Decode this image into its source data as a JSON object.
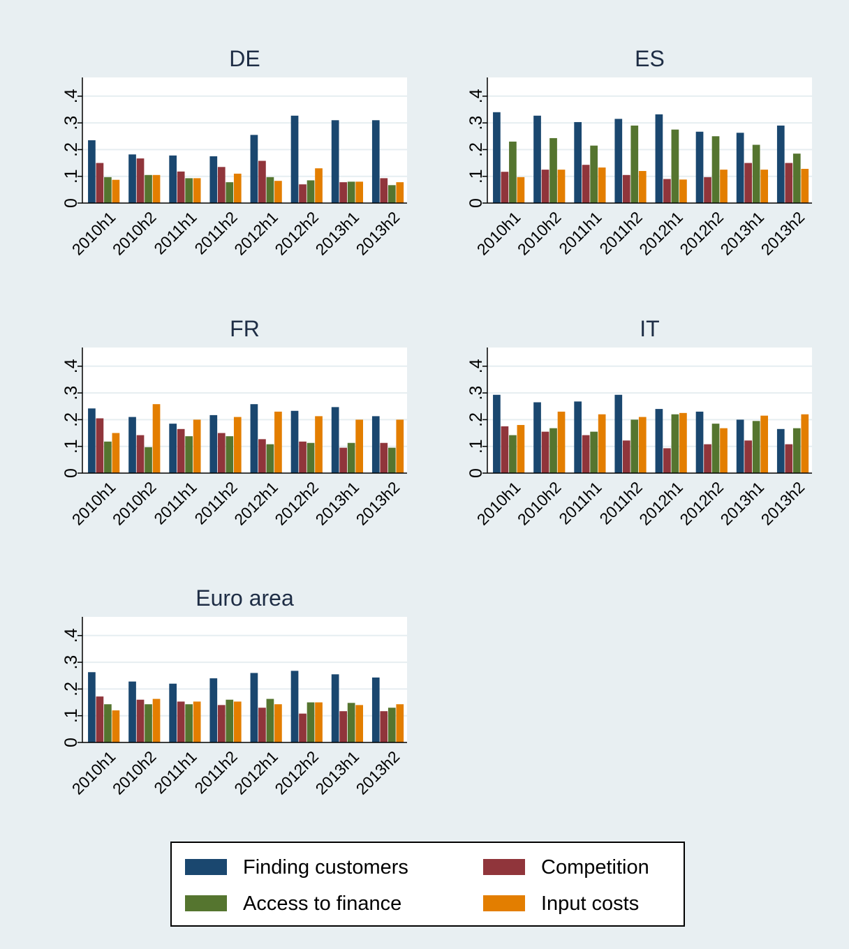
{
  "colors": {
    "outer_background": "#e8eff2",
    "plot_background": "#ffffff",
    "grid": "#e6eef1",
    "axis": "#000000",
    "title": "#1e2d45"
  },
  "legend": {
    "items": [
      {
        "label": "Finding customers",
        "color": "#1a476f"
      },
      {
        "label": "Competition",
        "color": "#90353b"
      },
      {
        "label": "Access to finance",
        "color": "#55752f"
      },
      {
        "label": "Input costs",
        "color": "#e37e00"
      }
    ]
  },
  "chart_data": [
    {
      "type": "bar",
      "title": "DE",
      "categories": [
        "2010h1",
        "2010h2",
        "2011h1",
        "2011h2",
        "2012h1",
        "2012h2",
        "2013h1",
        "2013h2"
      ],
      "yticks": [
        "0",
        ".1",
        ".2",
        ".3",
        ".4"
      ],
      "ylim": [
        0,
        0.47
      ],
      "grid": true,
      "series": [
        {
          "name": "Finding customers",
          "values": [
            0.235,
            0.182,
            0.178,
            0.175,
            0.255,
            0.327,
            0.31,
            0.31
          ]
        },
        {
          "name": "Competition",
          "values": [
            0.15,
            0.167,
            0.118,
            0.135,
            0.158,
            0.07,
            0.078,
            0.093
          ]
        },
        {
          "name": "Access to finance",
          "values": [
            0.097,
            0.105,
            0.093,
            0.078,
            0.097,
            0.085,
            0.08,
            0.067
          ]
        },
        {
          "name": "Input costs",
          "values": [
            0.087,
            0.105,
            0.093,
            0.11,
            0.083,
            0.13,
            0.08,
            0.078
          ]
        }
      ]
    },
    {
      "type": "bar",
      "title": "ES",
      "categories": [
        "2010h1",
        "2010h2",
        "2011h1",
        "2011h2",
        "2012h1",
        "2012h2",
        "2013h1",
        "2013h2"
      ],
      "yticks": [
        "0",
        ".1",
        ".2",
        ".3",
        ".4"
      ],
      "ylim": [
        0,
        0.47
      ],
      "grid": true,
      "series": [
        {
          "name": "Finding customers",
          "values": [
            0.34,
            0.327,
            0.303,
            0.315,
            0.332,
            0.267,
            0.263,
            0.29
          ]
        },
        {
          "name": "Competition",
          "values": [
            0.117,
            0.125,
            0.143,
            0.105,
            0.09,
            0.097,
            0.15,
            0.15
          ]
        },
        {
          "name": "Access to finance",
          "values": [
            0.23,
            0.243,
            0.215,
            0.29,
            0.275,
            0.25,
            0.218,
            0.185
          ]
        },
        {
          "name": "Input costs",
          "values": [
            0.097,
            0.125,
            0.133,
            0.12,
            0.088,
            0.125,
            0.125,
            0.128
          ]
        }
      ]
    },
    {
      "type": "bar",
      "title": "FR",
      "categories": [
        "2010h1",
        "2010h2",
        "2011h1",
        "2011h2",
        "2012h1",
        "2012h2",
        "2013h1",
        "2013h2"
      ],
      "yticks": [
        "0",
        ".1",
        ".2",
        ".3",
        ".4"
      ],
      "ylim": [
        0,
        0.47
      ],
      "grid": true,
      "series": [
        {
          "name": "Finding customers",
          "values": [
            0.242,
            0.21,
            0.185,
            0.217,
            0.258,
            0.233,
            0.247,
            0.213
          ]
        },
        {
          "name": "Competition",
          "values": [
            0.205,
            0.142,
            0.165,
            0.15,
            0.127,
            0.118,
            0.095,
            0.113
          ]
        },
        {
          "name": "Access to finance",
          "values": [
            0.118,
            0.097,
            0.138,
            0.138,
            0.108,
            0.113,
            0.113,
            0.095
          ]
        },
        {
          "name": "Input costs",
          "values": [
            0.15,
            0.258,
            0.2,
            0.21,
            0.23,
            0.213,
            0.2,
            0.2
          ]
        }
      ]
    },
    {
      "type": "bar",
      "title": "IT",
      "categories": [
        "2010h1",
        "2010h2",
        "2011h1",
        "2011h2",
        "2012h1",
        "2012h2",
        "2013h1",
        "2013h2"
      ],
      "yticks": [
        "0",
        ".1",
        ".2",
        ".3",
        ".4"
      ],
      "ylim": [
        0,
        0.47
      ],
      "grid": true,
      "series": [
        {
          "name": "Finding customers",
          "values": [
            0.293,
            0.265,
            0.268,
            0.293,
            0.24,
            0.23,
            0.2,
            0.165
          ]
        },
        {
          "name": "Competition",
          "values": [
            0.175,
            0.155,
            0.142,
            0.122,
            0.093,
            0.108,
            0.122,
            0.108
          ]
        },
        {
          "name": "Access to finance",
          "values": [
            0.142,
            0.168,
            0.155,
            0.2,
            0.22,
            0.185,
            0.195,
            0.168
          ]
        },
        {
          "name": "Input costs",
          "values": [
            0.18,
            0.23,
            0.22,
            0.21,
            0.225,
            0.168,
            0.215,
            0.22
          ]
        }
      ]
    },
    {
      "type": "bar",
      "title": "Euro area",
      "categories": [
        "2010h1",
        "2010h2",
        "2011h1",
        "2011h2",
        "2012h1",
        "2012h2",
        "2013h1",
        "2013h2"
      ],
      "yticks": [
        "0",
        ".1",
        ".2",
        ".3",
        ".4"
      ],
      "ylim": [
        0,
        0.47
      ],
      "grid": true,
      "series": [
        {
          "name": "Finding customers",
          "values": [
            0.263,
            0.228,
            0.22,
            0.24,
            0.26,
            0.268,
            0.255,
            0.243
          ]
        },
        {
          "name": "Competition",
          "values": [
            0.172,
            0.16,
            0.153,
            0.14,
            0.13,
            0.108,
            0.117,
            0.117
          ]
        },
        {
          "name": "Access to finance",
          "values": [
            0.143,
            0.143,
            0.143,
            0.16,
            0.163,
            0.15,
            0.148,
            0.13
          ]
        },
        {
          "name": "Input costs",
          "values": [
            0.12,
            0.163,
            0.153,
            0.153,
            0.143,
            0.15,
            0.14,
            0.143
          ]
        }
      ]
    }
  ]
}
